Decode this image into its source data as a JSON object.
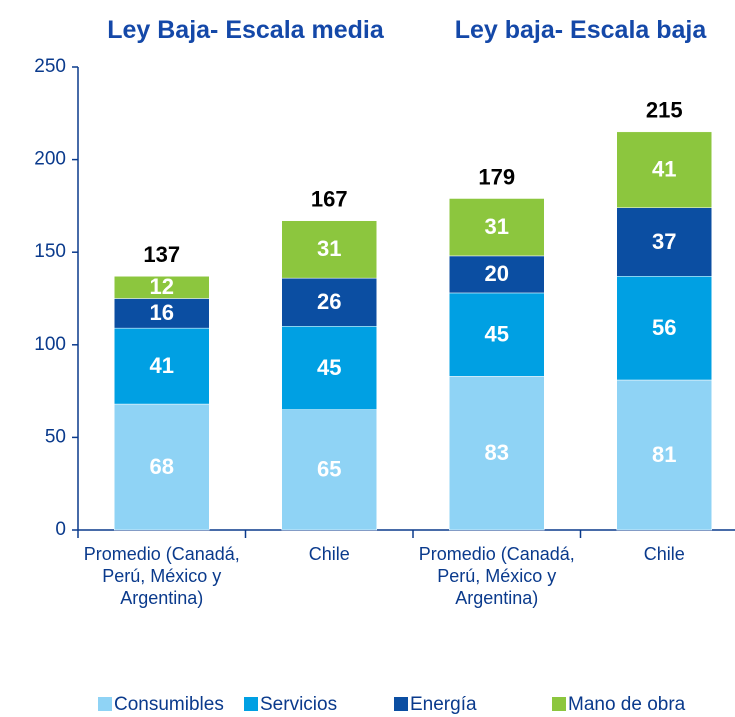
{
  "chart_data": {
    "type": "stacked_bar",
    "group_labels": [
      "Ley Baja- Escala media",
      "Ley baja- Escala baja"
    ],
    "categories": [
      "Promedio (Canadá, Perú, México y Argentina)",
      "Chile",
      "Promedio (Canadá, Perú, México y Argentina)",
      "Chile"
    ],
    "series": [
      {
        "name": "Consumibles",
        "color": "#8fd3f5",
        "values": [
          68,
          65,
          83,
          81
        ]
      },
      {
        "name": "Servicios",
        "color": "#00a0e3",
        "values": [
          41,
          45,
          45,
          56
        ]
      },
      {
        "name": "Energía",
        "color": "#0b4ea2",
        "values": [
          16,
          26,
          20,
          37
        ]
      },
      {
        "name": "Mano de obra",
        "color": "#8cc63e",
        "values": [
          12,
          31,
          31,
          41
        ]
      }
    ],
    "totals": [
      137,
      167,
      179,
      215
    ],
    "ylim": [
      0,
      250
    ],
    "yticks": [
      0,
      50,
      100,
      150,
      200,
      250
    ]
  }
}
